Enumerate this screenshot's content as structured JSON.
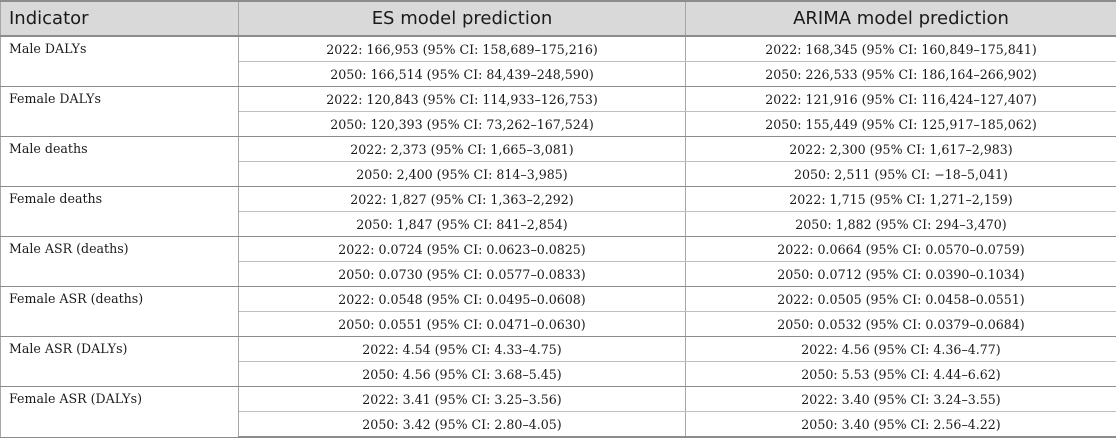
{
  "headers": {
    "indicator": "Indicator",
    "es": "ES model prediction",
    "arima": "ARIMA model prediction"
  },
  "rows": [
    {
      "indicator": "Male DALYs",
      "es": [
        "2022: 166,953 (95% CI: 158,689–175,216)",
        "2050: 166,514 (95% CI: 84,439–248,590)"
      ],
      "arima": [
        "2022: 168,345 (95% CI: 160,849–175,841)",
        "2050: 226,533 (95% CI: 186,164–266,902)"
      ]
    },
    {
      "indicator": "Female DALYs",
      "es": [
        "2022: 120,843 (95% CI: 114,933–126,753)",
        "2050: 120,393 (95% CI: 73,262–167,524)"
      ],
      "arima": [
        "2022: 121,916 (95% CI: 116,424–127,407)",
        "2050: 155,449 (95% CI: 125,917–185,062)"
      ]
    },
    {
      "indicator": "Male deaths",
      "es": [
        "2022: 2,373 (95% CI: 1,665–3,081)",
        "2050: 2,400 (95% CI: 814–3,985)"
      ],
      "arima": [
        "2022: 2,300 (95% CI: 1,617–2,983)",
        "2050: 2,511 (95% CI: −18–5,041)"
      ]
    },
    {
      "indicator": "Female deaths",
      "es": [
        "2022: 1,827 (95% CI: 1,363–2,292)",
        "2050: 1,847 (95% CI: 841–2,854)"
      ],
      "arima": [
        "2022: 1,715 (95% CI: 1,271–2,159)",
        "2050: 1,882 (95% CI: 294–3,470)"
      ]
    },
    {
      "indicator": "Male ASR (deaths)",
      "es": [
        "2022: 0.0724 (95% CI: 0.0623–0.0825)",
        "2050: 0.0730 (95% CI: 0.0577–0.0833)"
      ],
      "arima": [
        "2022: 0.0664 (95% CI: 0.0570–0.0759)",
        "2050: 0.0712 (95% CI: 0.0390–0.1034)"
      ]
    },
    {
      "indicator": "Female ASR (deaths)",
      "es": [
        "2022: 0.0548 (95% CI: 0.0495–0.0608)",
        "2050: 0.0551 (95% CI: 0.0471–0.0630)"
      ],
      "arima": [
        "2022: 0.0505 (95% CI: 0.0458–0.0551)",
        "2050: 0.0532 (95% CI: 0.0379–0.0684)"
      ]
    },
    {
      "indicator": "Male ASR (DALYs)",
      "es": [
        "2022: 4.54 (95% CI: 4.33–4.75)",
        "2050: 4.56 (95% CI: 3.68–5.45)"
      ],
      "arima": [
        "2022: 4.56 (95% CI: 4.36–4.77)",
        "2050: 5.53 (95% CI: 4.44–6.62)"
      ]
    },
    {
      "indicator": "Female ASR (DALYs)",
      "es": [
        "2022: 3.41 (95% CI: 3.25–3.56)",
        "2050: 3.42 (95% CI: 2.80–4.05)"
      ],
      "arima": [
        "2022: 3.40 (95% CI: 3.24–3.55)",
        "2050: 3.40 (95% CI: 2.56–4.22)"
      ]
    }
  ]
}
